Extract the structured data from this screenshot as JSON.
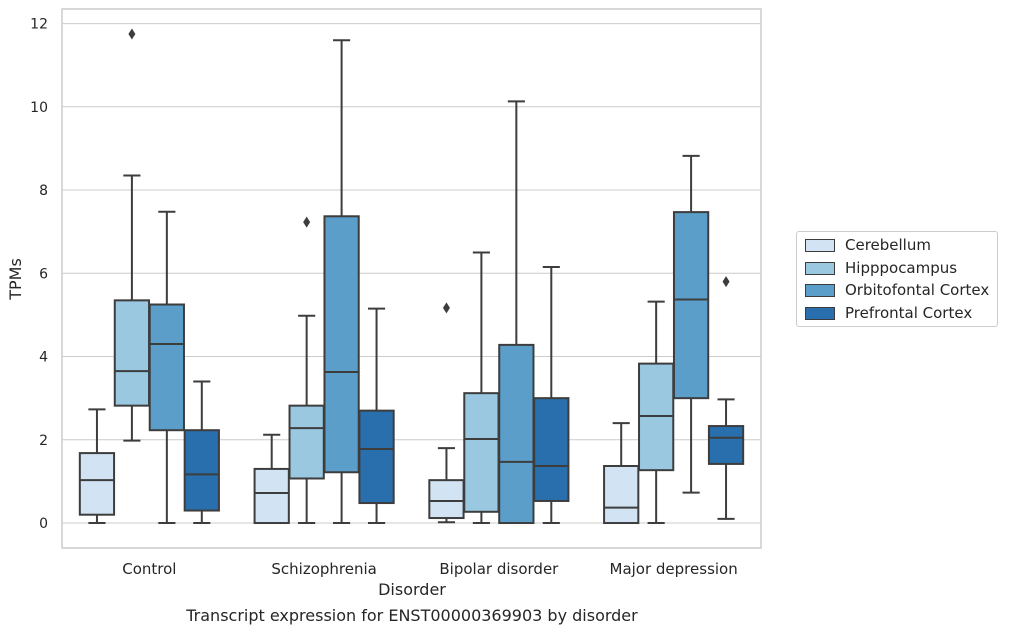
{
  "chart_data": {
    "type": "box",
    "xlabel": "Disorder",
    "ylabel": "TPMs",
    "caption": "Transcript expression for ENST00000369903 by disorder",
    "categories": [
      "Control",
      "Schizophrenia",
      "Bipolar disorder",
      "Major depression"
    ],
    "ylim": [
      -0.6,
      12.35
    ],
    "yticks": [
      0,
      2,
      4,
      6,
      8,
      10,
      12
    ],
    "grid": "horizontal",
    "legend_position": "right",
    "series": [
      {
        "name": "Cerebellum",
        "color": "#d2e3f3",
        "boxes": [
          {
            "whisker_low": 0.0,
            "q1": 0.2,
            "median": 1.03,
            "q3": 1.68,
            "whisker_high": 2.73,
            "outliers": []
          },
          {
            "whisker_low": 0.0,
            "q1": 0.0,
            "median": 0.72,
            "q3": 1.3,
            "whisker_high": 2.12,
            "outliers": []
          },
          {
            "whisker_low": 0.02,
            "q1": 0.12,
            "median": 0.53,
            "q3": 1.03,
            "whisker_high": 1.8,
            "outliers": [
              5.17
            ]
          },
          {
            "whisker_low": 0.0,
            "q1": 0.0,
            "median": 0.37,
            "q3": 1.37,
            "whisker_high": 2.4,
            "outliers": []
          }
        ]
      },
      {
        "name": "Hipppocampus",
        "color": "#9ac8e0",
        "boxes": [
          {
            "whisker_low": 1.98,
            "q1": 2.82,
            "median": 3.65,
            "q3": 5.35,
            "whisker_high": 8.35,
            "outliers": [
              11.75
            ]
          },
          {
            "whisker_low": 0.0,
            "q1": 1.07,
            "median": 2.28,
            "q3": 2.82,
            "whisker_high": 4.98,
            "outliers": [
              7.23
            ]
          },
          {
            "whisker_low": 0.0,
            "q1": 0.27,
            "median": 2.02,
            "q3": 3.12,
            "whisker_high": 6.5,
            "outliers": []
          },
          {
            "whisker_low": 0.0,
            "q1": 1.27,
            "median": 2.57,
            "q3": 3.83,
            "whisker_high": 5.32,
            "outliers": []
          }
        ]
      },
      {
        "name": "Orbitofontal Cortex",
        "color": "#5a9ec9",
        "boxes": [
          {
            "whisker_low": 0.0,
            "q1": 2.23,
            "median": 4.3,
            "q3": 5.25,
            "whisker_high": 7.48,
            "outliers": []
          },
          {
            "whisker_low": 0.0,
            "q1": 1.22,
            "median": 3.63,
            "q3": 7.37,
            "whisker_high": 11.6,
            "outliers": []
          },
          {
            "whisker_low": 0.0,
            "q1": 0.0,
            "median": 1.47,
            "q3": 4.28,
            "whisker_high": 10.13,
            "outliers": []
          },
          {
            "whisker_low": 0.73,
            "q1": 3.0,
            "median": 5.37,
            "q3": 7.47,
            "whisker_high": 8.82,
            "outliers": []
          }
        ]
      },
      {
        "name": "Prefrontal Cortex",
        "color": "#2a6fad",
        "boxes": [
          {
            "whisker_low": 0.0,
            "q1": 0.3,
            "median": 1.17,
            "q3": 2.23,
            "whisker_high": 3.4,
            "outliers": []
          },
          {
            "whisker_low": 0.0,
            "q1": 0.48,
            "median": 1.78,
            "q3": 2.7,
            "whisker_high": 5.15,
            "outliers": []
          },
          {
            "whisker_low": 0.0,
            "q1": 0.53,
            "median": 1.37,
            "q3": 3.0,
            "whisker_high": 6.15,
            "outliers": []
          },
          {
            "whisker_low": 0.1,
            "q1": 1.42,
            "median": 2.05,
            "q3": 2.33,
            "whisker_high": 2.97,
            "outliers": [
              5.8
            ]
          }
        ]
      }
    ]
  }
}
